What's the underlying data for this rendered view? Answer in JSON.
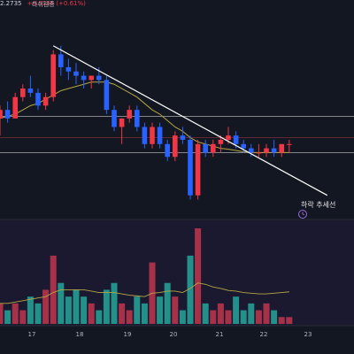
{
  "header": {
    "price_fragment": "2.2735",
    "change_text": "+0.0138 (+0.61%)",
    "label_fragment": "라쉬웬증"
  },
  "annotations": {
    "trendline_label": "하락 추세선",
    "alert_icon": "alarm-clock-icon"
  },
  "colors": {
    "up": "#f23645",
    "down": "#2962ff",
    "background": "#131722",
    "ma_line": "#b5a642",
    "trendline": "#ffffff",
    "volume_up": "#c2364f",
    "volume_down": "#26a69a",
    "volume_ma": "#7b68ee"
  },
  "chart_data": {
    "type": "candlestick",
    "xlabels": [
      "17",
      "18",
      "19",
      "20",
      "21",
      "22",
      "23"
    ],
    "candles": [
      {
        "o": 2.276,
        "h": 2.279,
        "l": 2.272,
        "c": 2.278
      },
      {
        "o": 2.278,
        "h": 2.28,
        "l": 2.275,
        "c": 2.276
      },
      {
        "o": 2.276,
        "h": 2.282,
        "l": 2.276,
        "c": 2.281
      },
      {
        "o": 2.281,
        "h": 2.284,
        "l": 2.28,
        "c": 2.283
      },
      {
        "o": 2.283,
        "h": 2.286,
        "l": 2.281,
        "c": 2.282
      },
      {
        "o": 2.282,
        "h": 2.283,
        "l": 2.278,
        "c": 2.279
      },
      {
        "o": 2.279,
        "h": 2.282,
        "l": 2.278,
        "c": 2.281
      },
      {
        "o": 2.281,
        "h": 2.292,
        "l": 2.28,
        "c": 2.291
      },
      {
        "o": 2.291,
        "h": 2.293,
        "l": 2.286,
        "c": 2.288
      },
      {
        "o": 2.288,
        "h": 2.29,
        "l": 2.285,
        "c": 2.287
      },
      {
        "o": 2.287,
        "h": 2.289,
        "l": 2.284,
        "c": 2.286
      },
      {
        "o": 2.286,
        "h": 2.287,
        "l": 2.283,
        "c": 2.285
      },
      {
        "o": 2.285,
        "h": 2.286,
        "l": 2.283,
        "c": 2.286
      },
      {
        "o": 2.286,
        "h": 2.288,
        "l": 2.284,
        "c": 2.285
      },
      {
        "o": 2.285,
        "h": 2.286,
        "l": 2.277,
        "c": 2.278
      },
      {
        "o": 2.278,
        "h": 2.279,
        "l": 2.273,
        "c": 2.274
      },
      {
        "o": 2.274,
        "h": 2.276,
        "l": 2.27,
        "c": 2.276
      },
      {
        "o": 2.276,
        "h": 2.279,
        "l": 2.275,
        "c": 2.278
      },
      {
        "o": 2.278,
        "h": 2.279,
        "l": 2.273,
        "c": 2.274
      },
      {
        "o": 2.274,
        "h": 2.275,
        "l": 2.269,
        "c": 2.27
      },
      {
        "o": 2.27,
        "h": 2.275,
        "l": 2.269,
        "c": 2.274
      },
      {
        "o": 2.274,
        "h": 2.275,
        "l": 2.269,
        "c": 2.27
      },
      {
        "o": 2.27,
        "h": 2.271,
        "l": 2.266,
        "c": 2.267
      },
      {
        "o": 2.267,
        "h": 2.273,
        "l": 2.266,
        "c": 2.272
      },
      {
        "o": 2.272,
        "h": 2.274,
        "l": 2.27,
        "c": 2.271
      },
      {
        "o": 2.271,
        "h": 2.272,
        "l": 2.257,
        "c": 2.258
      },
      {
        "o": 2.258,
        "h": 2.271,
        "l": 2.257,
        "c": 2.27
      },
      {
        "o": 2.27,
        "h": 2.271,
        "l": 2.267,
        "c": 2.268
      },
      {
        "o": 2.268,
        "h": 2.271,
        "l": 2.267,
        "c": 2.27
      },
      {
        "o": 2.27,
        "h": 2.272,
        "l": 2.268,
        "c": 2.271
      },
      {
        "o": 2.271,
        "h": 2.274,
        "l": 2.27,
        "c": 2.272
      },
      {
        "o": 2.272,
        "h": 2.273,
        "l": 2.269,
        "c": 2.27
      },
      {
        "o": 2.27,
        "h": 2.271,
        "l": 2.268,
        "c": 2.269
      },
      {
        "o": 2.269,
        "h": 2.27,
        "l": 2.267,
        "c": 2.268
      },
      {
        "o": 2.268,
        "h": 2.27,
        "l": 2.267,
        "c": 2.268
      },
      {
        "o": 2.268,
        "h": 2.27,
        "l": 2.267,
        "c": 2.269
      },
      {
        "o": 2.269,
        "h": 2.271,
        "l": 2.267,
        "c": 2.268
      },
      {
        "o": 2.268,
        "h": 2.27,
        "l": 2.267,
        "c": 2.27
      },
      {
        "o": 2.27,
        "h": 2.271,
        "l": 2.268,
        "c": 2.27
      }
    ],
    "ma": [
      2.276,
      2.2765,
      2.277,
      2.278,
      2.279,
      2.2795,
      2.2805,
      2.2815,
      2.2825,
      2.283,
      2.2835,
      2.284,
      2.2845,
      2.2845,
      2.2845,
      2.284,
      2.283,
      2.282,
      2.281,
      2.2795,
      2.278,
      2.277,
      2.2755,
      2.274,
      2.273,
      2.2715,
      2.2705,
      2.27,
      2.2695,
      2.269,
      2.2688,
      2.2685,
      2.2682,
      2.268,
      2.268,
      2.268,
      2.268,
      2.268,
      2.268
    ],
    "hlines": [
      2.2765,
      2.2715,
      2.268
    ],
    "trendline": {
      "x1_index": 7,
      "y1": 2.293,
      "x2_index": 43,
      "y2": 2.258
    },
    "ylim": [
      2.254,
      2.3
    ],
    "volume": [
      3,
      2,
      3,
      2,
      4,
      3,
      5,
      10,
      6,
      4,
      5,
      4,
      3,
      2,
      5,
      6,
      3,
      2,
      4,
      3,
      9,
      4,
      6,
      4,
      2,
      10,
      14,
      3,
      2,
      3,
      2,
      4,
      2,
      3,
      2,
      3,
      2,
      1,
      1
    ],
    "volume_ma": [
      3,
      3,
      3.2,
      3.4,
      3.6,
      3.8,
      4,
      4.6,
      5,
      5,
      5,
      5,
      4.8,
      4.6,
      4.6,
      4.6,
      4.4,
      4.2,
      4.1,
      4,
      4.5,
      4.6,
      4.8,
      4.8,
      4.6,
      5.2,
      6,
      5.8,
      5.4,
      5.2,
      4.9,
      4.8,
      4.6,
      4.5,
      4.4,
      4.4,
      4.5,
      4.6,
      4.7
    ],
    "volume_max": 14
  }
}
